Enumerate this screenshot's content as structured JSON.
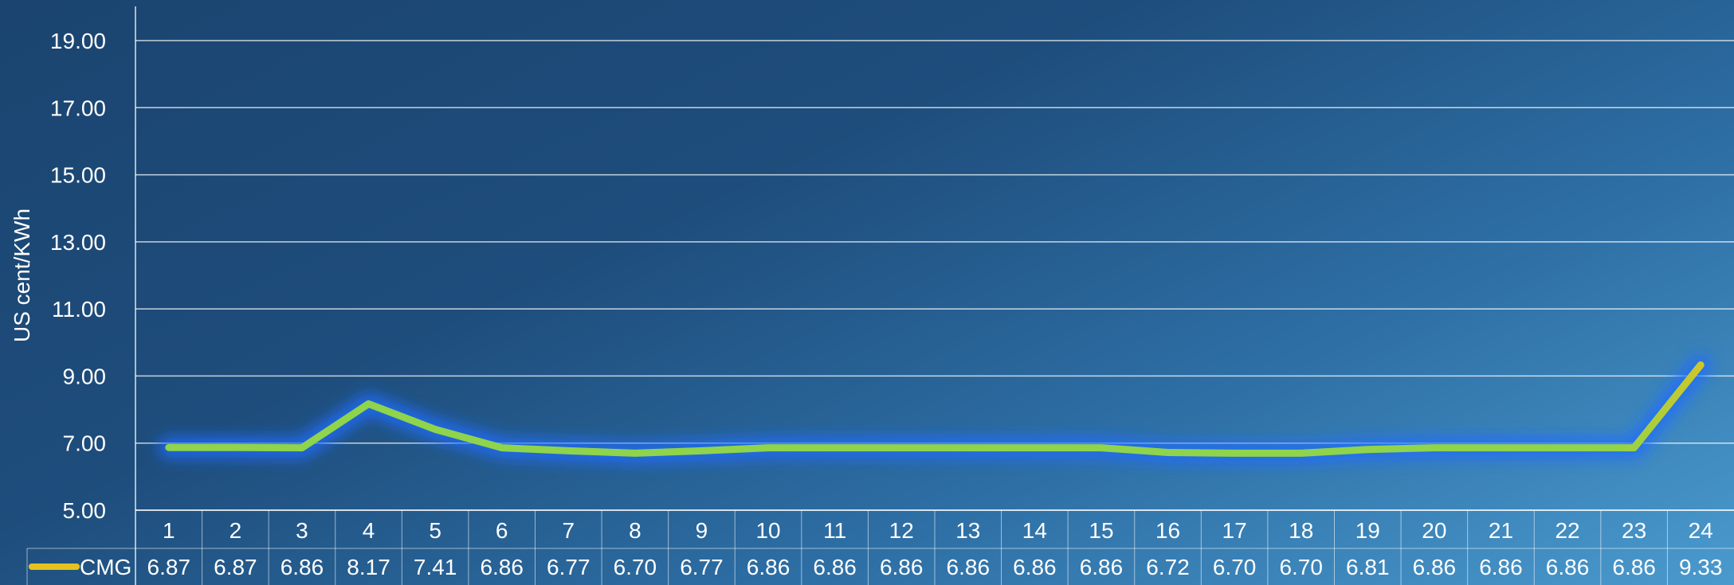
{
  "chart_data": {
    "type": "line",
    "ylabel": "US cent/KWh",
    "ylim": [
      5.0,
      20.0
    ],
    "yticks": [
      "5.00",
      "7.00",
      "9.00",
      "11.00",
      "13.00",
      "15.00",
      "17.00",
      "19.00"
    ],
    "categories": [
      "1",
      "2",
      "3",
      "4",
      "5",
      "6",
      "7",
      "8",
      "9",
      "10",
      "11",
      "12",
      "13",
      "14",
      "15",
      "16",
      "17",
      "18",
      "19",
      "20",
      "21",
      "22",
      "23",
      "24"
    ],
    "series": [
      {
        "name": "CMG",
        "values": [
          6.87,
          6.87,
          6.86,
          8.17,
          7.41,
          6.86,
          6.77,
          6.7,
          6.77,
          6.86,
          6.86,
          6.86,
          6.86,
          6.86,
          6.86,
          6.72,
          6.7,
          6.7,
          6.81,
          6.86,
          6.86,
          6.86,
          6.86,
          9.33
        ],
        "value_labels": [
          "6.87",
          "6.87",
          "6.86",
          "8.17",
          "7.41",
          "6.86",
          "6.77",
          "6.70",
          "6.77",
          "6.86",
          "6.86",
          "6.86",
          "6.86",
          "6.86",
          "6.86",
          "6.72",
          "6.70",
          "6.70",
          "6.81",
          "6.86",
          "6.86",
          "6.86",
          "6.86",
          "9.33"
        ]
      }
    ],
    "grid": true,
    "legend": "data-table",
    "colors": {
      "line_low": "#8fd44a",
      "line_high": "#e6c21e",
      "glow": "#1e6cff",
      "grid": "#ffffff",
      "text": "#ffffff"
    }
  }
}
